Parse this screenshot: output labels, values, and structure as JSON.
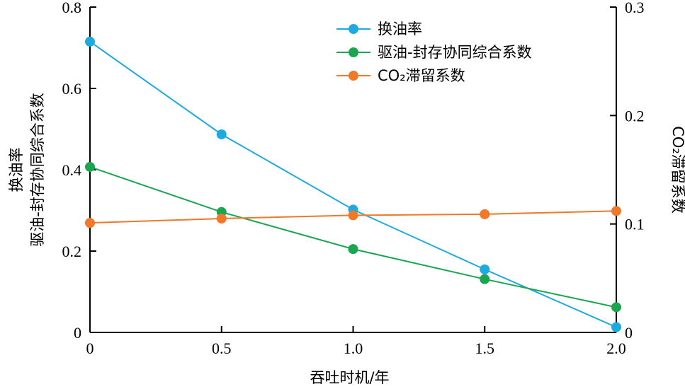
{
  "chart_data": {
    "type": "line",
    "title": "",
    "xlabel": "吞吐时机/年",
    "ylabel_left_lines": [
      "换油率",
      "驱油-封存协同综合系数"
    ],
    "ylabel_right": "CO₂滞留系数",
    "xlim": [
      0,
      2.0
    ],
    "ylim_left": [
      0,
      0.8
    ],
    "ylim_right": [
      0,
      0.3
    ],
    "x_ticks": [
      "0",
      "0.5",
      "1.0",
      "1.5",
      "2.0"
    ],
    "x_tick_values": [
      0,
      0.5,
      1.0,
      1.5,
      2.0
    ],
    "y_left_ticks": [
      "0",
      "0.2",
      "0.4",
      "0.6",
      "0.8"
    ],
    "y_left_tick_values": [
      0,
      0.2,
      0.4,
      0.6,
      0.8
    ],
    "y_right_ticks": [
      "0",
      "0.1",
      "0.2",
      "0.3"
    ],
    "y_right_tick_values": [
      0,
      0.1,
      0.2,
      0.3
    ],
    "legend_position": "top-center",
    "grid": false,
    "x": [
      0,
      0.5,
      1.0,
      1.5,
      2.0
    ],
    "series": [
      {
        "name": "换油率",
        "axis": "left",
        "color": "#1eaadf",
        "values": [
          0.715,
          0.487,
          0.302,
          0.155,
          0.013
        ]
      },
      {
        "name": "驱油-封存协同综合系数",
        "axis": "left",
        "color": "#1aa551",
        "values": [
          0.407,
          0.296,
          0.205,
          0.131,
          0.062
        ]
      },
      {
        "name": "CO₂滞留系数",
        "axis": "right",
        "color": "#f0782a",
        "values": [
          0.101,
          0.105,
          0.108,
          0.109,
          0.112
        ]
      }
    ]
  }
}
